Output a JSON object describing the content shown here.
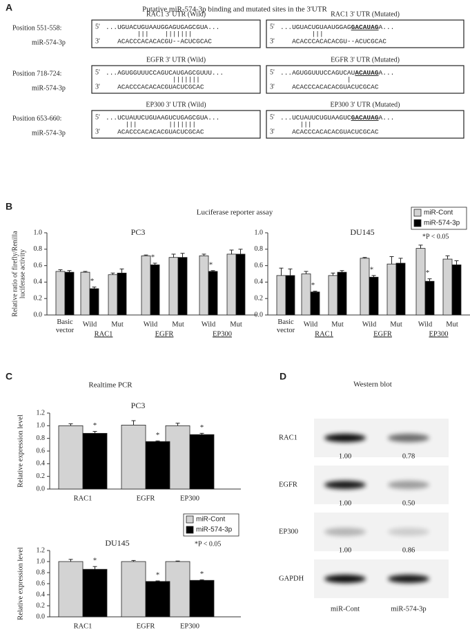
{
  "panel_a": {
    "label": "A",
    "title": "Putative miR-574-3p binding and mutated sites in the 3'UTR",
    "five_prime": "5'",
    "three_prime": "3'",
    "rows": [
      {
        "position": "Position 551-558:",
        "mirna": "miR-574-3p",
        "wild": {
          "title": "RAC1 3' UTR (Wild)",
          "target": "...UGUACUGUAAUGGAGUGAGCGUA...",
          "pairing": "        |||    |||||||",
          "mirna_seq": "   ACACCCACACACGU--ACUCGCAC"
        },
        "mutated": {
          "title": "RAC1 3' UTR (Mutated)",
          "target": "...UGUACUGUAAUGGAG",
          "site": "GACAUAG",
          "target_end": "A...",
          "pairing": "        |||",
          "mirna_seq": "   ACACCCACACACGU--ACUCGCAC"
        }
      },
      {
        "position": "Position 718-724:",
        "mirna": "miR-574-3p",
        "wild": {
          "title": "EGFR 3' UTR (Wild)",
          "target": "...AGUGGUUUCCAGUCAUGAGCGUUU...",
          "pairing": "                 |||||||",
          "mirna_seq": "   ACACCCACACACGUACUCGCAC"
        },
        "mutated": {
          "title": "EGFR 3' UTR (Mutated)",
          "target": "...AGUGGUUUCCAGUCAU",
          "site": "ACAUAG",
          "target_end": "A...",
          "pairing": "                 |",
          "mirna_seq": "   ACACCCACACACGUACUCGCAC"
        }
      },
      {
        "position": "Position 653-660:",
        "mirna": "miR-574-3p",
        "wild": {
          "title": "EP300 3' UTR (Wild)",
          "target": "...UCUAUUCUGUAAGUCUGAGCGUA...",
          "pairing": "     |||        |||||||",
          "mirna_seq": "   ACACCCACACACGUACUCGCAC"
        },
        "mutated": {
          "title": "EP300 3' UTR (Mutated)",
          "target": "...UCUAUUCUGUAAGUC",
          "site": "GACAUAG",
          "target_end": "A...",
          "pairing": "     |||",
          "mirna_seq": "   ACACCCACACACGUACUCGCAC"
        }
      }
    ]
  },
  "panel_b": {
    "label": "B",
    "title": "Luciferase reporter assay"
  },
  "panel_c": {
    "label": "C",
    "title": "Realtime PCR"
  },
  "panel_d": {
    "label": "D",
    "title": "Western blot",
    "rows": [
      {
        "protein": "RAC1",
        "values": [
          "1.00",
          "0.78"
        ]
      },
      {
        "protein": "EGFR",
        "values": [
          "1.00",
          "0.50"
        ]
      },
      {
        "protein": "EP300",
        "values": [
          "1.00",
          "0.86"
        ]
      },
      {
        "protein": "GAPDH"
      }
    ],
    "lanes": [
      "miR-Cont",
      "miR-574-3p"
    ]
  },
  "chart_data": [
    {
      "type": "bar",
      "title": "PC3",
      "ylabel": "Relative ratio of firefly/Renilla luciferase activity",
      "categories": [
        "Basic vector",
        "Wild",
        "Mut",
        "Wild",
        "Mut",
        "Wild",
        "Mut"
      ],
      "genes": [
        "RAC1",
        "EGFR",
        "EP300"
      ],
      "star": "*",
      "series": [
        {
          "color": "#d3d3d3",
          "values": [
            0.53,
            0.52,
            0.49,
            0.72,
            0.7,
            0.72,
            0.74
          ],
          "errors": [
            0.02,
            0.01,
            0.02,
            0.01,
            0.04,
            0.02,
            0.05
          ],
          "significant": [
            false,
            false,
            false,
            false,
            false,
            false,
            false
          ]
        },
        {
          "color": "#000000",
          "values": [
            0.52,
            0.32,
            0.51,
            0.61,
            0.7,
            0.53,
            0.74
          ],
          "errors": [
            0.02,
            0.02,
            0.05,
            0.02,
            0.05,
            0.01,
            0.06
          ],
          "significant": [
            false,
            true,
            false,
            true,
            false,
            true,
            false
          ]
        }
      ],
      "ylim": [
        0,
        1
      ],
      "yticks": [
        {
          "value": 0,
          "label": "0.0"
        },
        0.2,
        0.4,
        0.6,
        0.8,
        {
          "value": 1,
          "label": "1.0"
        }
      ]
    },
    {
      "type": "bar",
      "title": "DU145",
      "categories": [
        "Basic vector",
        "Wild",
        "Mut",
        "Wild",
        "Mut",
        "Wild",
        "Mut"
      ],
      "genes": [
        "RAC1",
        "EGFR",
        "EP300"
      ],
      "star": "*",
      "series": [
        {
          "name": "miR-Cont",
          "color": "#d3d3d3",
          "values": [
            0.48,
            0.5,
            0.48,
            0.69,
            0.62,
            0.81,
            0.68
          ],
          "errors": [
            0.09,
            0.03,
            0.03,
            0.01,
            0.09,
            0.04,
            0.04
          ],
          "significant": [
            false,
            false,
            false,
            false,
            false,
            false,
            false
          ]
        },
        {
          "name": "miR-574-3p",
          "color": "#000000",
          "values": [
            0.48,
            0.28,
            0.52,
            0.46,
            0.63,
            0.41,
            0.61
          ],
          "errors": [
            0.08,
            0.01,
            0.02,
            0.02,
            0.06,
            0.03,
            0.05
          ],
          "significant": [
            false,
            true,
            false,
            true,
            false,
            true,
            false
          ]
        }
      ],
      "legend": "upper-right",
      "note": "*P < 0.05",
      "ylim": [
        0,
        1
      ],
      "yticks": [
        {
          "value": 0,
          "label": "0.0"
        },
        0.2,
        0.4,
        0.6,
        0.8,
        {
          "value": 1,
          "label": "1.0"
        }
      ]
    },
    {
      "type": "bar",
      "title": "PC3",
      "ylabel": "Relative expression level",
      "categories": [
        "RAC1",
        "EGFR",
        "EP300"
      ],
      "star": "*",
      "series": [
        {
          "name": "miR-Cont",
          "color": "#d3d3d3",
          "values": [
            1.0,
            1.01,
            1.0
          ],
          "errors": [
            0.03,
            0.07,
            0.04
          ],
          "significant": [
            false,
            false,
            false
          ]
        },
        {
          "name": "miR-574-3p",
          "color": "#000000",
          "values": [
            0.88,
            0.75,
            0.86
          ],
          "errors": [
            0.03,
            0.01,
            0.02
          ],
          "significant": [
            true,
            true,
            true
          ]
        }
      ],
      "legend": "lower-right",
      "note": "*P < 0.05",
      "ylim": [
        0,
        1.2
      ],
      "yticks": [
        {
          "value": 0,
          "label": "0.0"
        },
        0.2,
        0.4,
        0.6,
        0.8,
        {
          "value": 1,
          "label": "1.0"
        },
        1.2
      ]
    },
    {
      "type": "bar",
      "title": "DU145",
      "ylabel": "Relative expression level",
      "categories": [
        "RAC1",
        "EGFR",
        "EP300"
      ],
      "star": "*",
      "series": [
        {
          "color": "#d3d3d3",
          "values": [
            1.0,
            1.0,
            1.0
          ],
          "errors": [
            0.04,
            0.02,
            0.01
          ],
          "significant": [
            false,
            false,
            false
          ]
        },
        {
          "color": "#000000",
          "values": [
            0.86,
            0.64,
            0.66
          ],
          "errors": [
            0.05,
            0.01,
            0.01
          ],
          "significant": [
            true,
            true,
            true
          ]
        }
      ],
      "ylim": [
        0,
        1.2
      ],
      "yticks": [
        {
          "value": 0,
          "label": "0.0"
        },
        0.2,
        0.4,
        0.6,
        0.8,
        {
          "value": 1,
          "label": "1.0"
        },
        1.2
      ]
    }
  ]
}
